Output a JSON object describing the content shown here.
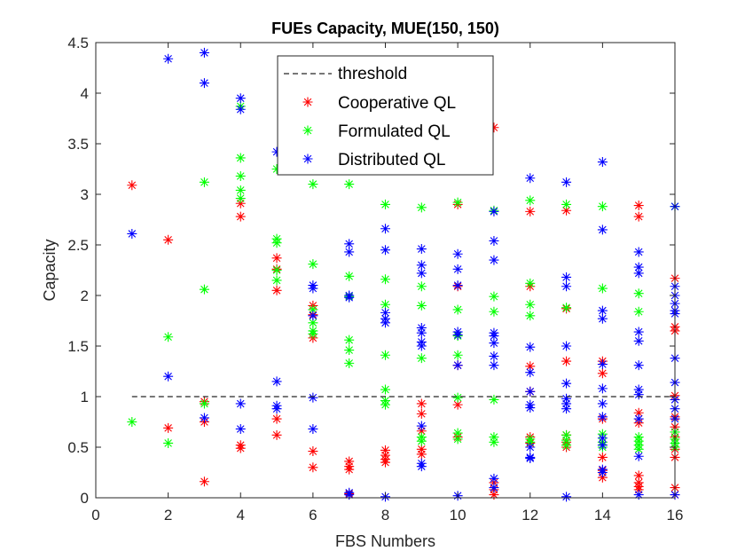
{
  "chart_data": {
    "type": "scatter",
    "title": "FUEs Capacity, MUE(150, 150)",
    "xlabel": "FBS Numbers",
    "ylabel": "Capacity",
    "xlim": [
      0,
      16
    ],
    "ylim": [
      0,
      4.5
    ],
    "xticks": [
      "0",
      "2",
      "4",
      "6",
      "8",
      "10",
      "12",
      "14",
      "16"
    ],
    "yticks": [
      "0",
      "0.5",
      "1",
      "1.5",
      "2",
      "2.5",
      "3",
      "3.5",
      "4",
      "4.5"
    ],
    "grid": false,
    "legend_position": "top-center",
    "marker": "*",
    "threshold": {
      "name": "threshold",
      "value": 1.0,
      "x_range": [
        1,
        16
      ],
      "color": "#262626"
    },
    "series": [
      {
        "name": "Cooperative QL",
        "color": "#ff0000",
        "points": [
          [
            1,
            3.09
          ],
          [
            2,
            2.55
          ],
          [
            2,
            0.69
          ],
          [
            3,
            0.95
          ],
          [
            3,
            0.75
          ],
          [
            3,
            0.16
          ],
          [
            4,
            2.91
          ],
          [
            4,
            2.78
          ],
          [
            4,
            0.52
          ],
          [
            4,
            0.49
          ],
          [
            5,
            2.37
          ],
          [
            5,
            2.26
          ],
          [
            5,
            2.05
          ],
          [
            5,
            0.78
          ],
          [
            5,
            0.62
          ],
          [
            6,
            1.9
          ],
          [
            6,
            1.58
          ],
          [
            6,
            1.81
          ],
          [
            6,
            0.46
          ],
          [
            6,
            0.3
          ],
          [
            7,
            0.36
          ],
          [
            7,
            0.31
          ],
          [
            7,
            0.28
          ],
          [
            7,
            0.04
          ],
          [
            8,
            0.47
          ],
          [
            8,
            0.42
          ],
          [
            8,
            0.38
          ],
          [
            8,
            0.35
          ],
          [
            9,
            0.93
          ],
          [
            9,
            0.83
          ],
          [
            9,
            0.66
          ],
          [
            9,
            0.48
          ],
          [
            9,
            0.43
          ],
          [
            10,
            2.9
          ],
          [
            10,
            2.09
          ],
          [
            10,
            1.31
          ],
          [
            10,
            0.92
          ],
          [
            10,
            0.6
          ],
          [
            11,
            3.66
          ],
          [
            11,
            0.15
          ],
          [
            11,
            0.08
          ],
          [
            11,
            0.03
          ],
          [
            12,
            2.83
          ],
          [
            12,
            2.09
          ],
          [
            12,
            1.3
          ],
          [
            12,
            1.05
          ],
          [
            12,
            0.6
          ],
          [
            12,
            0.54
          ],
          [
            13,
            2.84
          ],
          [
            13,
            1.87
          ],
          [
            13,
            1.35
          ],
          [
            13,
            0.62
          ],
          [
            13,
            0.55
          ],
          [
            13,
            0.5
          ],
          [
            14,
            1.35
          ],
          [
            14,
            1.23
          ],
          [
            14,
            0.78
          ],
          [
            14,
            0.4
          ],
          [
            14,
            0.27
          ],
          [
            14,
            0.2
          ],
          [
            15,
            2.89
          ],
          [
            15,
            2.78
          ],
          [
            15,
            0.84
          ],
          [
            15,
            0.74
          ],
          [
            15,
            0.22
          ],
          [
            15,
            0.15
          ],
          [
            15,
            0.11
          ],
          [
            15,
            0.08
          ],
          [
            16,
            2.17
          ],
          [
            16,
            1.69
          ],
          [
            16,
            1.65
          ],
          [
            16,
            1.01
          ],
          [
            16,
            0.8
          ],
          [
            16,
            0.7
          ],
          [
            16,
            0.6
          ],
          [
            16,
            0.48
          ],
          [
            16,
            0.4
          ],
          [
            16,
            0.1
          ],
          [
            16,
            0.03
          ]
        ]
      },
      {
        "name": "Formulated QL",
        "color": "#00ff00",
        "points": [
          [
            1,
            0.75
          ],
          [
            2,
            1.59
          ],
          [
            2,
            0.54
          ],
          [
            3,
            3.12
          ],
          [
            3,
            2.06
          ],
          [
            3,
            0.93
          ],
          [
            4,
            3.36
          ],
          [
            4,
            3.18
          ],
          [
            4,
            3.04
          ],
          [
            4,
            2.96
          ],
          [
            4,
            3.87
          ],
          [
            5,
            3.25
          ],
          [
            5,
            2.56
          ],
          [
            5,
            2.52
          ],
          [
            5,
            2.25
          ],
          [
            5,
            2.15
          ],
          [
            6,
            3.1
          ],
          [
            6,
            2.31
          ],
          [
            6,
            1.86
          ],
          [
            6,
            1.73
          ],
          [
            6,
            1.65
          ],
          [
            6,
            1.62
          ],
          [
            7,
            3.1
          ],
          [
            7,
            2.19
          ],
          [
            7,
            1.99
          ],
          [
            7,
            1.56
          ],
          [
            7,
            1.46
          ],
          [
            7,
            1.33
          ],
          [
            8,
            2.9
          ],
          [
            8,
            2.16
          ],
          [
            8,
            1.91
          ],
          [
            8,
            1.41
          ],
          [
            8,
            1.07
          ],
          [
            8,
            0.96
          ],
          [
            8,
            0.92
          ],
          [
            9,
            2.87
          ],
          [
            9,
            2.09
          ],
          [
            9,
            1.9
          ],
          [
            9,
            1.38
          ],
          [
            9,
            0.6
          ],
          [
            9,
            0.56
          ],
          [
            10,
            2.92
          ],
          [
            10,
            1.86
          ],
          [
            10,
            1.6
          ],
          [
            10,
            1.41
          ],
          [
            10,
            0.99
          ],
          [
            10,
            0.64
          ],
          [
            10,
            0.58
          ],
          [
            11,
            2.84
          ],
          [
            11,
            1.99
          ],
          [
            11,
            1.84
          ],
          [
            11,
            0.97
          ],
          [
            11,
            0.6
          ],
          [
            11,
            0.55
          ],
          [
            12,
            2.94
          ],
          [
            12,
            2.12
          ],
          [
            12,
            1.91
          ],
          [
            12,
            1.8
          ],
          [
            12,
            0.58
          ],
          [
            12,
            0.55
          ],
          [
            13,
            2.9
          ],
          [
            13,
            1.88
          ],
          [
            13,
            0.62
          ],
          [
            13,
            0.57
          ],
          [
            13,
            0.52
          ],
          [
            14,
            2.88
          ],
          [
            14,
            2.07
          ],
          [
            14,
            0.63
          ],
          [
            14,
            0.55
          ],
          [
            14,
            0.5
          ],
          [
            15,
            2.02
          ],
          [
            15,
            1.84
          ],
          [
            15,
            0.6
          ],
          [
            15,
            0.56
          ],
          [
            15,
            0.52
          ],
          [
            15,
            0.48
          ],
          [
            16,
            2.88
          ],
          [
            16,
            0.65
          ],
          [
            16,
            0.58
          ],
          [
            16,
            0.54
          ],
          [
            16,
            0.5
          ]
        ]
      },
      {
        "name": "Distributed QL",
        "color": "#0000ff",
        "points": [
          [
            1,
            2.61
          ],
          [
            2,
            4.34
          ],
          [
            2,
            1.2
          ],
          [
            3,
            4.4
          ],
          [
            3,
            4.1
          ],
          [
            3,
            0.79
          ],
          [
            4,
            3.95
          ],
          [
            4,
            3.84
          ],
          [
            4,
            0.93
          ],
          [
            4,
            0.68
          ],
          [
            5,
            3.42
          ],
          [
            5,
            1.15
          ],
          [
            5,
            0.91
          ],
          [
            5,
            0.88
          ],
          [
            6,
            2.1
          ],
          [
            6,
            2.07
          ],
          [
            6,
            1.8
          ],
          [
            6,
            0.99
          ],
          [
            6,
            0.68
          ],
          [
            7,
            2.51
          ],
          [
            7,
            2.43
          ],
          [
            7,
            2.0
          ],
          [
            7,
            1.98
          ],
          [
            7,
            0.05
          ],
          [
            7,
            0.03
          ],
          [
            8,
            2.66
          ],
          [
            8,
            2.45
          ],
          [
            8,
            1.83
          ],
          [
            8,
            1.77
          ],
          [
            8,
            1.73
          ],
          [
            8,
            0.01
          ],
          [
            9,
            2.46
          ],
          [
            9,
            2.3
          ],
          [
            9,
            2.22
          ],
          [
            9,
            1.68
          ],
          [
            9,
            1.63
          ],
          [
            9,
            1.54
          ],
          [
            9,
            1.5
          ],
          [
            9,
            0.71
          ],
          [
            9,
            0.34
          ],
          [
            9,
            0.31
          ],
          [
            10,
            2.41
          ],
          [
            10,
            2.26
          ],
          [
            10,
            2.1
          ],
          [
            10,
            1.64
          ],
          [
            10,
            1.61
          ],
          [
            10,
            1.31
          ],
          [
            10,
            0.02
          ],
          [
            11,
            2.83
          ],
          [
            11,
            2.54
          ],
          [
            11,
            2.35
          ],
          [
            11,
            1.63
          ],
          [
            11,
            1.6
          ],
          [
            11,
            1.53
          ],
          [
            11,
            1.4
          ],
          [
            11,
            1.31
          ],
          [
            11,
            0.19
          ],
          [
            11,
            0.1
          ],
          [
            12,
            3.16
          ],
          [
            12,
            1.49
          ],
          [
            12,
            1.24
          ],
          [
            12,
            1.05
          ],
          [
            12,
            0.92
          ],
          [
            12,
            0.89
          ],
          [
            12,
            0.5
          ],
          [
            12,
            0.4
          ],
          [
            12,
            0.39
          ],
          [
            13,
            3.12
          ],
          [
            13,
            2.18
          ],
          [
            13,
            2.09
          ],
          [
            13,
            1.5
          ],
          [
            13,
            1.13
          ],
          [
            13,
            0.98
          ],
          [
            13,
            0.93
          ],
          [
            13,
            0.88
          ],
          [
            13,
            0.01
          ],
          [
            14,
            3.32
          ],
          [
            14,
            2.65
          ],
          [
            14,
            1.85
          ],
          [
            14,
            1.77
          ],
          [
            14,
            1.32
          ],
          [
            14,
            1.08
          ],
          [
            14,
            0.93
          ],
          [
            14,
            0.8
          ],
          [
            14,
            0.59
          ],
          [
            14,
            0.52
          ],
          [
            14,
            0.28
          ],
          [
            14,
            0.25
          ],
          [
            15,
            2.43
          ],
          [
            15,
            2.28
          ],
          [
            15,
            2.22
          ],
          [
            15,
            1.64
          ],
          [
            15,
            1.55
          ],
          [
            15,
            1.31
          ],
          [
            15,
            1.07
          ],
          [
            15,
            1.02
          ],
          [
            15,
            0.78
          ],
          [
            15,
            0.41
          ],
          [
            15,
            0.03
          ],
          [
            16,
            2.88
          ],
          [
            16,
            2.09
          ],
          [
            16,
            2.0
          ],
          [
            16,
            1.92
          ],
          [
            16,
            1.85
          ],
          [
            16,
            1.82
          ],
          [
            16,
            1.38
          ],
          [
            16,
            1.14
          ],
          [
            16,
            0.97
          ],
          [
            16,
            0.88
          ],
          [
            16,
            0.78
          ],
          [
            16,
            0.03
          ]
        ]
      }
    ]
  }
}
